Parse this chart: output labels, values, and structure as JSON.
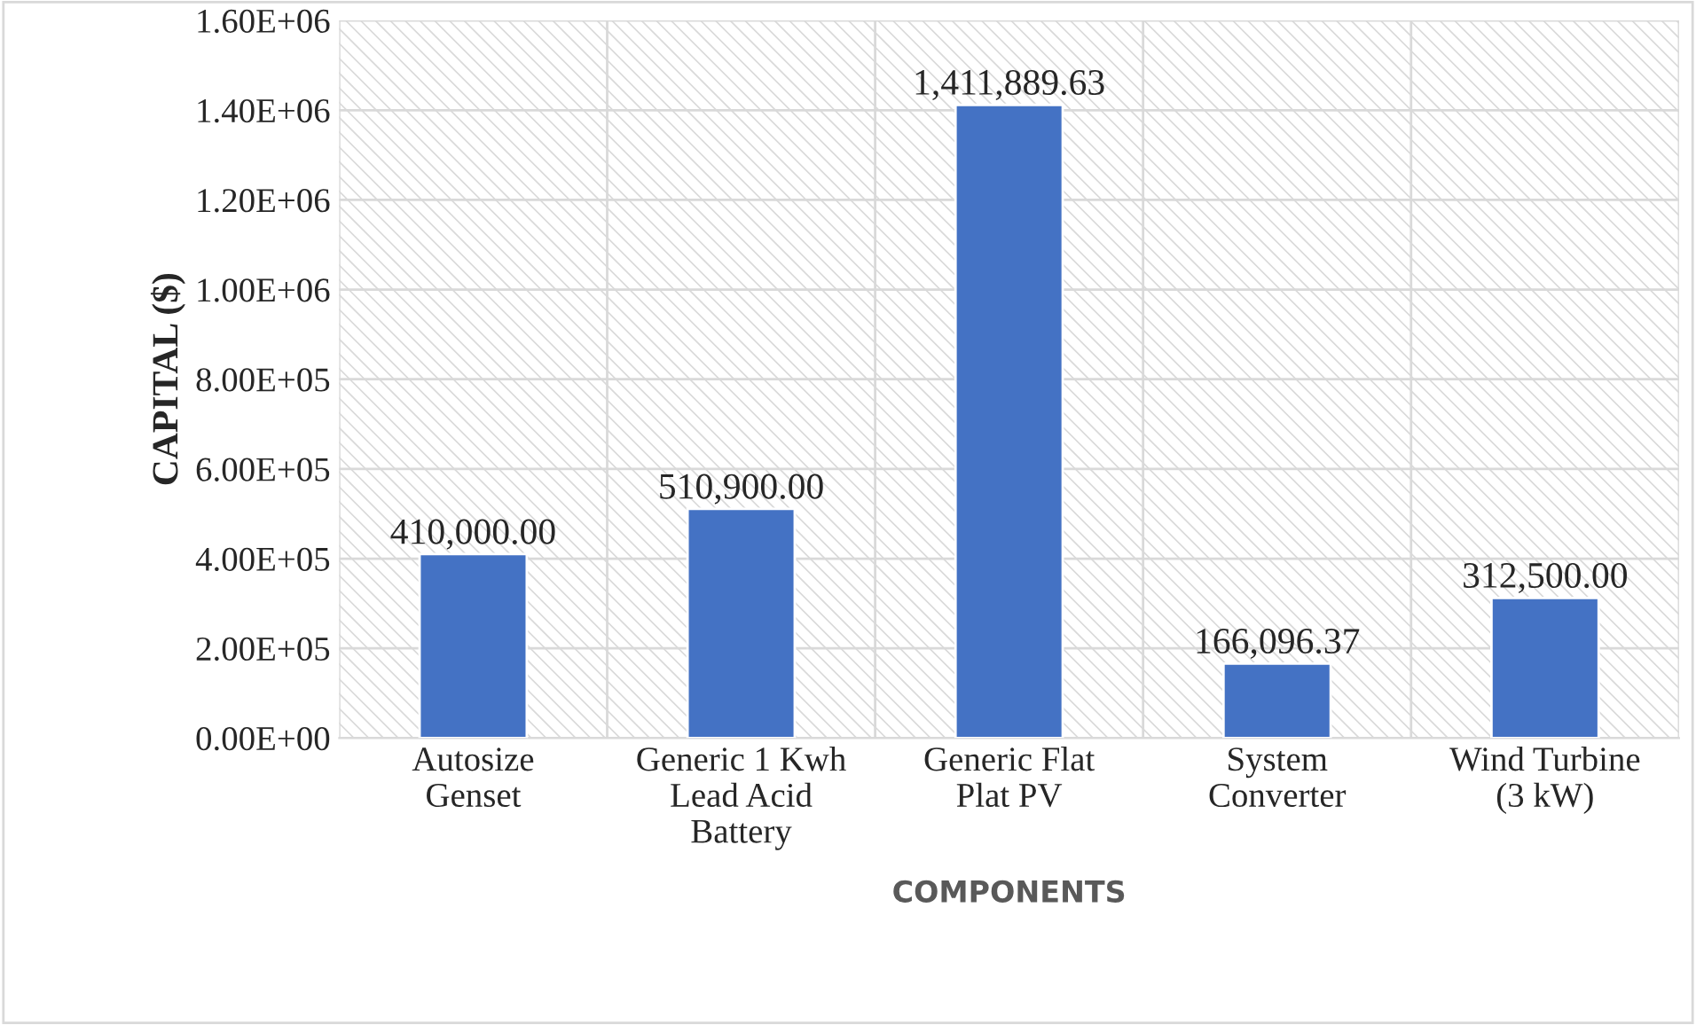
{
  "chart_data": {
    "type": "bar",
    "xlabel": "COMPONENTS",
    "ylabel": "CAPITAL ($)",
    "categories": [
      "Autosize\nGenset",
      "Generic 1 Kwh\nLead Acid\nBattery",
      "Generic Flat\nPlat PV",
      "System\nConverter",
      "Wind Turbine\n(3 kW)"
    ],
    "values": [
      410000.0,
      510900.0,
      1411889.63,
      166096.37,
      312500.0
    ],
    "value_labels": [
      "410,000.00",
      "510,900.00",
      "1,411,889.63",
      "166,096.37",
      "312,500.00"
    ],
    "color": "#4472c4",
    "ylim": [
      0,
      1600000
    ],
    "yticks": [
      {
        "value": 0,
        "label": "0.00E+00"
      },
      {
        "value": 200000,
        "label": "2.00E+05"
      },
      {
        "value": 400000,
        "label": "4.00E+05"
      },
      {
        "value": 600000,
        "label": "6.00E+05"
      },
      {
        "value": 800000,
        "label": "8.00E+05"
      },
      {
        "value": 1000000,
        "label": "1.00E+06"
      },
      {
        "value": 1200000,
        "label": "1.20E+06"
      },
      {
        "value": 1400000,
        "label": "1.40E+06"
      },
      {
        "value": 1600000,
        "label": "1.60E+06"
      }
    ],
    "grid": true
  }
}
